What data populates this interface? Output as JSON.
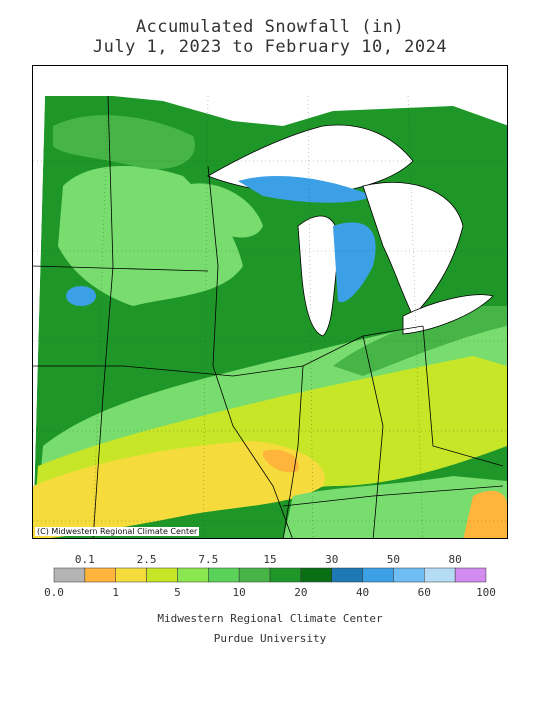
{
  "title_line1": "Accumulated Snowfall (in)",
  "title_line2": "July 1, 2023 to February 10, 2024",
  "copyright": "(C) Midwestern Regional Climate Center",
  "legend": {
    "top_labels": [
      "0.1",
      "2.5",
      "7.5",
      "15",
      "30",
      "50",
      "80"
    ],
    "bottom_labels": [
      "0.0",
      "1",
      "5",
      "10",
      "20",
      "40",
      "60",
      "100"
    ],
    "bin_colors": [
      "#b4b4b4",
      "#ffb43c",
      "#f5dc3c",
      "#c8e628",
      "#8ce650",
      "#5ad25a",
      "#46b446",
      "#1e9628",
      "#0a6e14",
      "#1e78b4",
      "#3ca0e6",
      "#6ebef5",
      "#b4dcf5",
      "#d28cf0"
    ]
  },
  "map": {
    "land_colors": {
      "light_green": "#78dc6e",
      "mid_green": "#46b446",
      "dark_green": "#1e9628",
      "deep_green": "#0a7814",
      "lime": "#c8e628",
      "yellow": "#f5dc3c",
      "orange": "#ffb43c",
      "lake_blue": "#3ca0e6",
      "deep_blue": "#1e78b4"
    }
  },
  "footer_line1": "Midwestern Regional Climate Center",
  "footer_line2": "Purdue University"
}
